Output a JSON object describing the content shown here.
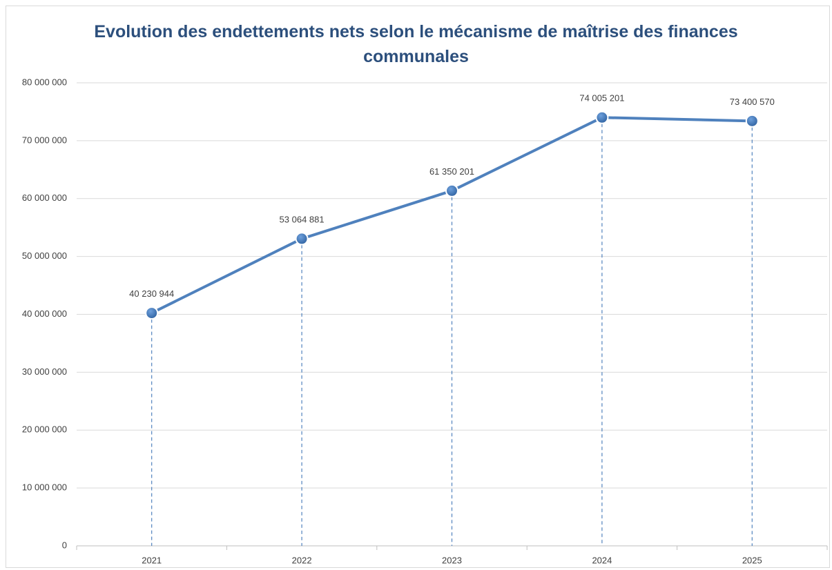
{
  "chart_data": {
    "type": "line",
    "title": "Evolution des endettements nets selon le mécanisme de maîtrise des finances communales",
    "categories": [
      "2021",
      "2022",
      "2023",
      "2024",
      "2025"
    ],
    "series": [
      {
        "color": "#4f81bd",
        "values": [
          40230944,
          53064881,
          61350201,
          74005201,
          73400570
        ],
        "value_labels": [
          "40 230 944",
          "53 064 881",
          "61 350 201",
          "74 005 201",
          "73 400 570"
        ]
      }
    ],
    "ylim": [
      0,
      80000000
    ],
    "yticks": [
      0,
      {
        "value": 10000000,
        "label": "10 000 000"
      },
      {
        "value": 20000000,
        "label": "20 000 000"
      },
      {
        "value": 30000000,
        "label": "30 000 000"
      },
      {
        "value": 40000000,
        "label": "40 000 000"
      },
      {
        "value": 50000000,
        "label": "50 000 000"
      },
      {
        "value": 60000000,
        "label": "60 000 000"
      },
      {
        "value": 70000000,
        "label": "70 000 000"
      },
      {
        "value": 80000000,
        "label": "80 000 000"
      }
    ],
    "grid": true,
    "drop_lines": true
  }
}
